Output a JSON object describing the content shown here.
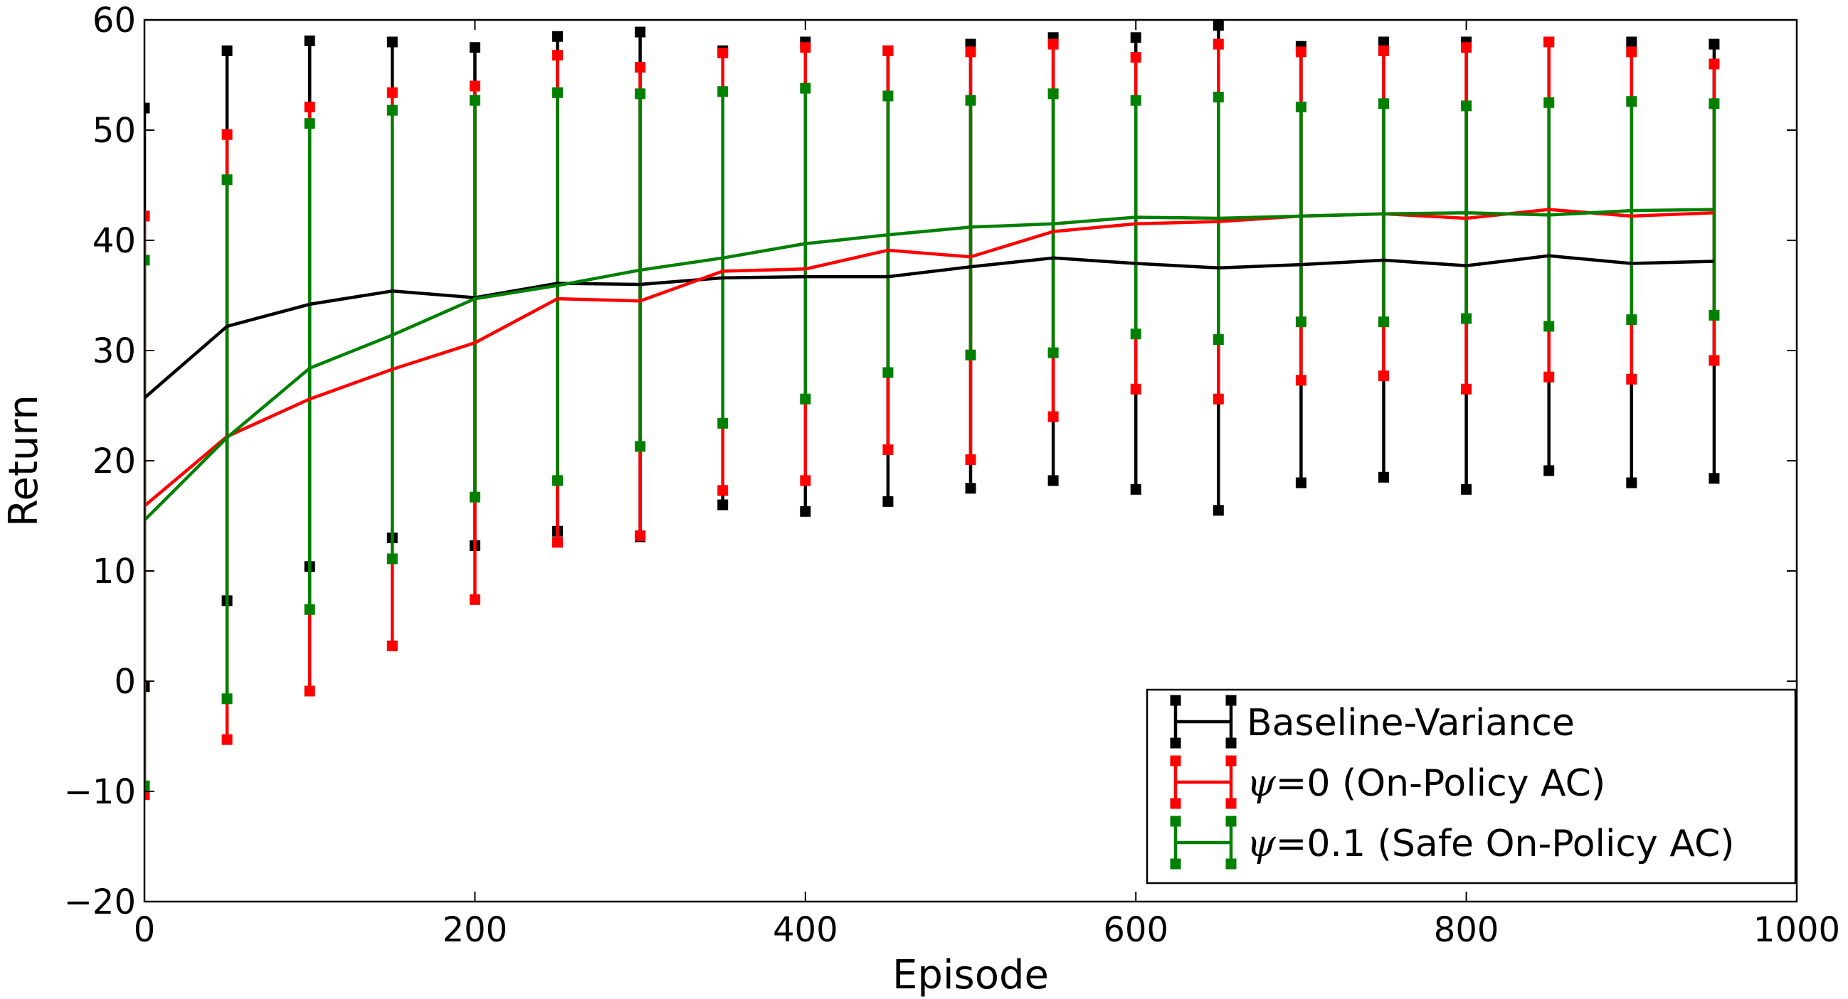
{
  "chart_data": {
    "type": "line",
    "xlabel": "Episode",
    "ylabel": "Return",
    "xlim": [
      0,
      1000
    ],
    "ylim": [
      -20,
      60
    ],
    "xticks": [
      0,
      200,
      400,
      600,
      800,
      1000
    ],
    "yticks": [
      -20,
      -10,
      0,
      10,
      20,
      30,
      40,
      50,
      60
    ],
    "xtick_labels": [
      "0",
      "200",
      "400",
      "600",
      "800",
      "1000"
    ],
    "ytick_labels": [
      "−20",
      "−10",
      "0",
      "10",
      "20",
      "30",
      "40",
      "50",
      "60"
    ],
    "grid": false,
    "legend_position": "lower-right",
    "x": [
      0,
      50,
      100,
      150,
      200,
      250,
      300,
      350,
      400,
      450,
      500,
      550,
      600,
      650,
      700,
      750,
      800,
      850,
      900,
      950
    ],
    "series": [
      {
        "name": "Baseline-Variance",
        "legend_label": "Baseline-Variance",
        "color": "#000000",
        "values": [
          25.7,
          32.2,
          34.2,
          35.4,
          34.8,
          36.1,
          36.0,
          36.6,
          36.7,
          36.7,
          37.6,
          38.4,
          37.9,
          37.5,
          37.8,
          38.2,
          37.7,
          38.6,
          37.9,
          38.1
        ],
        "upper": [
          52.0,
          57.2,
          58.1,
          58.0,
          57.5,
          58.5,
          58.9,
          57.2,
          58.0,
          57.2,
          57.8,
          58.4,
          58.4,
          59.5,
          57.6,
          58.0,
          58.0,
          58.0,
          58.0,
          57.8
        ],
        "lower": [
          -0.5,
          7.3,
          10.4,
          13.0,
          12.3,
          13.6,
          13.1,
          16.0,
          15.4,
          16.3,
          17.5,
          18.2,
          17.4,
          15.5,
          18.0,
          18.5,
          17.4,
          19.1,
          18.0,
          18.4
        ]
      },
      {
        "name": "psi=0 (On-Policy AC)",
        "legend_symbol": "ψ",
        "legend_label": "=0 (On-Policy AC)",
        "color": "#ff0000",
        "values": [
          15.9,
          22.2,
          25.6,
          28.3,
          30.7,
          34.7,
          34.5,
          37.2,
          37.4,
          39.1,
          38.5,
          40.8,
          41.5,
          41.7,
          42.2,
          42.4,
          42.0,
          42.8,
          42.2,
          42.5
        ],
        "upper": [
          42.2,
          49.6,
          52.1,
          53.4,
          54.0,
          56.8,
          55.7,
          57.0,
          57.5,
          57.2,
          57.1,
          57.8,
          56.6,
          57.8,
          57.1,
          57.2,
          57.5,
          58.0,
          57.1,
          56.0
        ],
        "lower": [
          -10.3,
          -5.3,
          -0.9,
          3.2,
          7.4,
          12.6,
          13.2,
          17.3,
          18.2,
          21.0,
          20.1,
          24.0,
          26.5,
          25.6,
          27.3,
          27.7,
          26.5,
          27.6,
          27.4,
          29.1
        ]
      },
      {
        "name": "psi=0.1 (Safe On-Policy AC)",
        "legend_symbol": "ψ",
        "legend_label": "=0.1 (Safe On-Policy AC)",
        "color": "#008000",
        "values": [
          14.6,
          22.1,
          28.4,
          31.4,
          34.7,
          35.9,
          37.3,
          38.4,
          39.7,
          40.5,
          41.2,
          41.5,
          42.1,
          42.0,
          42.2,
          42.4,
          42.5,
          42.3,
          42.7,
          42.8
        ],
        "upper": [
          38.2,
          45.5,
          50.6,
          51.8,
          52.7,
          53.4,
          53.3,
          53.5,
          53.8,
          53.1,
          52.7,
          53.3,
          52.7,
          53.0,
          52.1,
          52.4,
          52.2,
          52.5,
          52.6,
          52.4
        ],
        "lower": [
          -9.5,
          -1.6,
          6.5,
          11.1,
          16.7,
          18.2,
          21.3,
          23.4,
          25.6,
          28.0,
          29.6,
          29.8,
          31.5,
          31.0,
          32.6,
          32.6,
          32.9,
          32.2,
          32.8,
          33.2
        ]
      }
    ]
  }
}
